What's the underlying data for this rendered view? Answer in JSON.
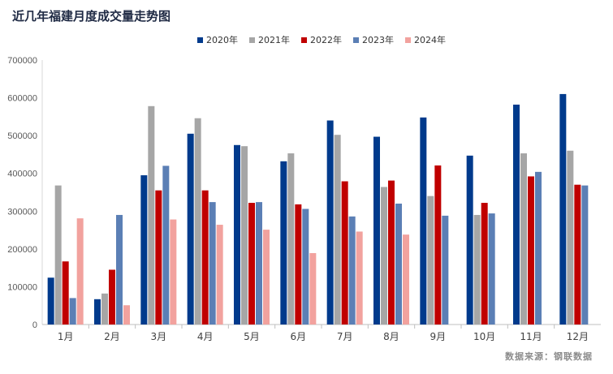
{
  "title": "近几年福建月度成交量走势图",
  "source": "数据来源：钢联数据",
  "colors": [
    "#003a8c",
    "#a6a6a6",
    "#c00000",
    "#5b7fb5",
    "#f2a29e"
  ],
  "chart_data": {
    "type": "bar",
    "categories": [
      "1月",
      "2月",
      "3月",
      "4月",
      "5月",
      "6月",
      "7月",
      "8月",
      "9月",
      "10月",
      "11月",
      "12月"
    ],
    "series": [
      {
        "name": "2020年",
        "values": [
          124000,
          67000,
          395000,
          505000,
          475000,
          432000,
          540000,
          497000,
          548000,
          447000,
          582000,
          610000
        ]
      },
      {
        "name": "2021年",
        "values": [
          368000,
          82000,
          578000,
          546000,
          472000,
          453000,
          502000,
          364000,
          340000,
          290000,
          453000,
          460000
        ]
      },
      {
        "name": "2022年",
        "values": [
          167000,
          145000,
          355000,
          355000,
          322000,
          318000,
          379000,
          381000,
          421000,
          322000,
          392000,
          370000
        ]
      },
      {
        "name": "2023年",
        "values": [
          70000,
          290000,
          420000,
          324000,
          324000,
          306000,
          286000,
          320000,
          288000,
          294000,
          404000,
          368000
        ]
      },
      {
        "name": "2024年",
        "values": [
          281000,
          51000,
          278000,
          264000,
          251000,
          189000,
          246000,
          238000,
          null,
          null,
          null,
          null
        ]
      }
    ],
    "y_ticks": [
      "0",
      "100000",
      "200000",
      "300000",
      "400000",
      "500000",
      "600000",
      "700000"
    ],
    "ylim": [
      0,
      700000
    ],
    "legend_position": "top-center",
    "grid": false
  }
}
